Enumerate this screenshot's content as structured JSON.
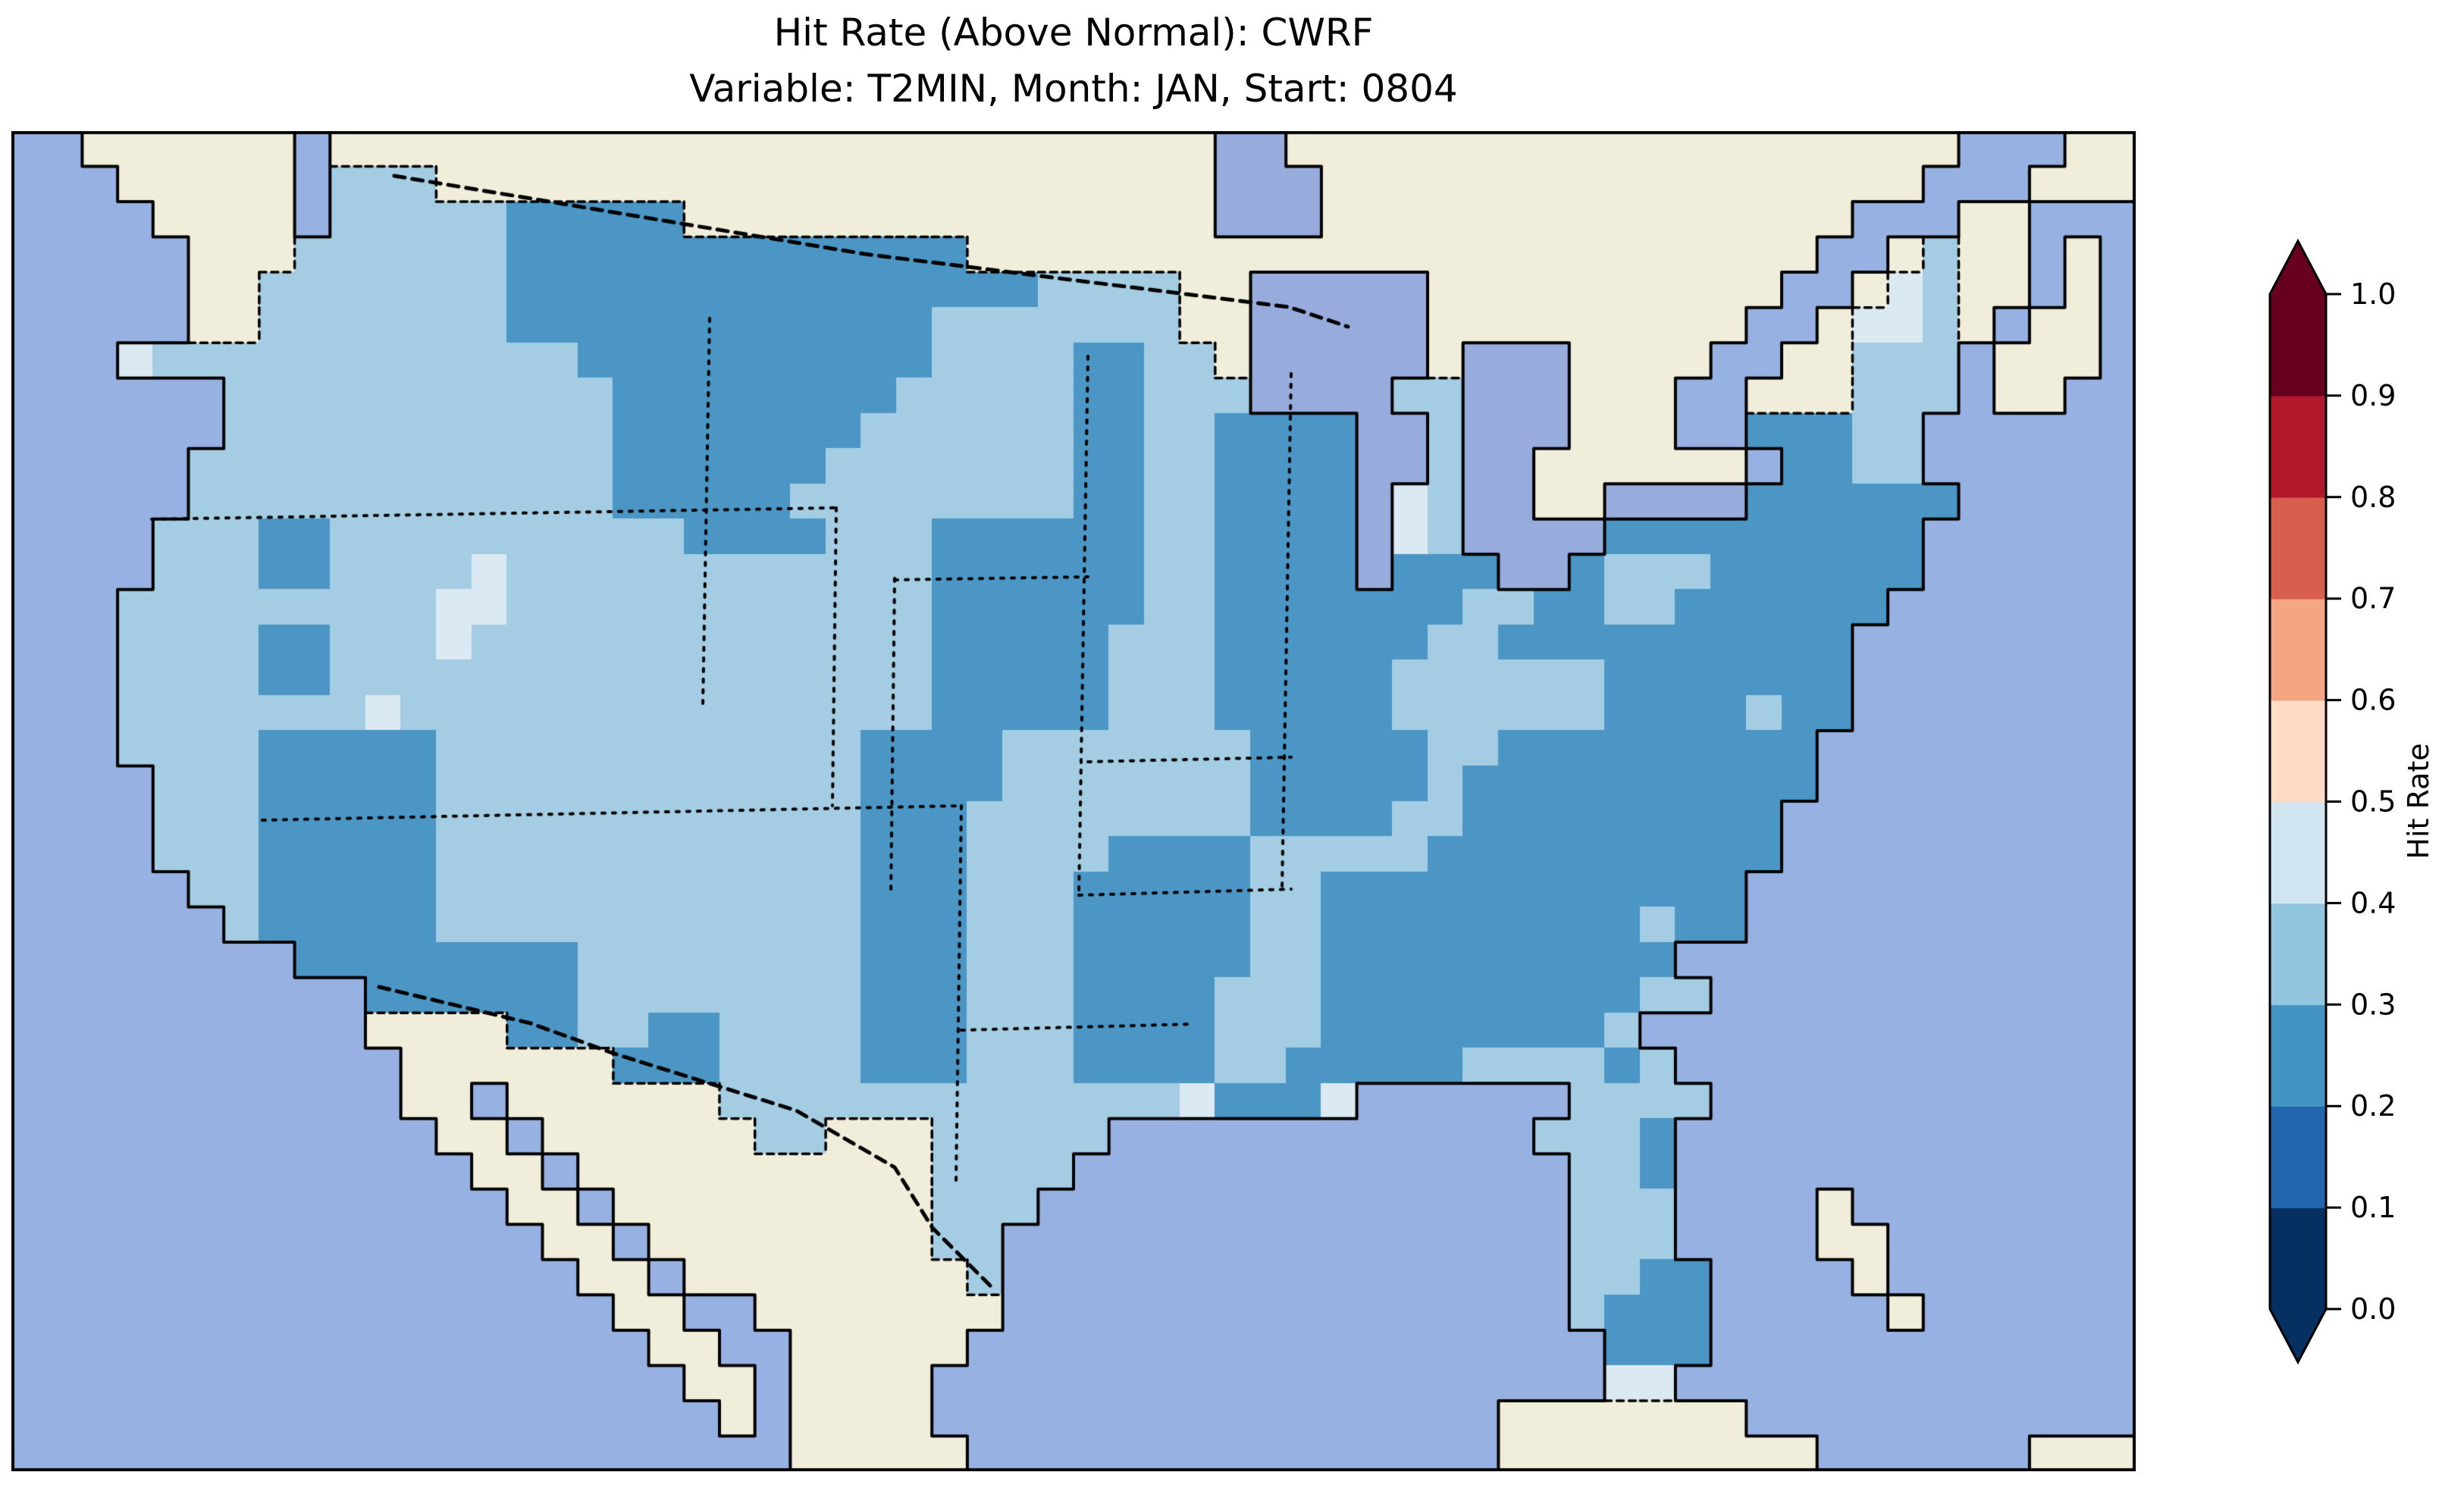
{
  "title": {
    "line1": "Hit Rate (Above Normal): CWRF",
    "line2": "Variable: T2MIN, Month: JAN, Start: 0804"
  },
  "colorbar": {
    "label": "Hit Rate",
    "ticks": [
      "0.0",
      "0.1",
      "0.2",
      "0.3",
      "0.4",
      "0.5",
      "0.6",
      "0.7",
      "0.8",
      "0.9",
      "1.0"
    ],
    "colors": [
      "#053061",
      "#2166ac",
      "#4393c3",
      "#92c5de",
      "#d1e5f0",
      "#fddbc7",
      "#f4a582",
      "#d6604d",
      "#b2182b",
      "#67001f"
    ],
    "colormap": "RdBu_r",
    "extend": "both"
  },
  "map": {
    "palette": {
      "W": "#97b2e2",
      "L": "#f0eeda",
      "K": "#98abdd",
      "2": "#4b96c5",
      "3": "#a4cce3",
      "4": "#dbe9f2"
    },
    "coast_color": "#000000",
    "border_dash_color": "#000000",
    "state_lines": [
      [
        [
          185,
          512
        ],
        [
          1088,
          497
        ]
      ],
      [
        [
          331,
          909
        ],
        [
          1253,
          890
        ]
      ],
      [
        [
          1088,
          497
        ],
        [
          1083,
          890
        ]
      ],
      [
        [
          921,
          247
        ],
        [
          912,
          760
        ]
      ],
      [
        [
          1165,
          590
        ],
        [
          1160,
          1008
        ]
      ],
      [
        [
          1420,
          297
        ],
        [
          1408,
          1008
        ]
      ],
      [
        [
          1165,
          592
        ],
        [
          1420,
          588
        ]
      ],
      [
        [
          1408,
          1008
        ],
        [
          1688,
          1000
        ]
      ],
      [
        [
          1420,
          832
        ],
        [
          1688,
          826
        ]
      ],
      [
        [
          1253,
          890
        ],
        [
          1246,
          1385
        ]
      ],
      [
        [
          1253,
          1186
        ],
        [
          1560,
          1178
        ]
      ],
      [
        [
          1688,
          320
        ],
        [
          1676,
          1000
        ]
      ]
    ],
    "country_borders": [
      [
        [
          505,
          59
        ],
        [
          1125,
          162
        ],
        [
          1685,
          232
        ],
        [
          1763,
          258
        ]
      ],
      [
        [
          485,
          1129
        ],
        [
          685,
          1177
        ],
        [
          795,
          1217
        ],
        [
          1035,
          1292
        ],
        [
          1165,
          1367
        ],
        [
          1215,
          1447
        ],
        [
          1295,
          1527
        ]
      ]
    ]
  },
  "chart_data": {
    "type": "heatmap",
    "title": "Hit Rate (Above Normal): CWRF",
    "subtitle": "Variable: T2MIN, Month: JAN, Start: 0804",
    "model": "CWRF",
    "variable": "T2MIN",
    "month": "JAN",
    "start": "0804",
    "region": "Contiguous United States",
    "colorbar_label": "Hit Rate",
    "value_bins": [
      0.0,
      0.1,
      0.2,
      0.3,
      0.4,
      0.5,
      0.6,
      0.7,
      0.8,
      0.9,
      1.0
    ],
    "bin_colors": [
      "#053061",
      "#2166ac",
      "#4393c3",
      "#92c5de",
      "#d1e5f0",
      "#fddbc7",
      "#f4a582",
      "#d6604d",
      "#b2182b",
      "#67001f"
    ],
    "observed_value_range": [
      0.2,
      0.5
    ],
    "grid_legend": {
      "W": "ocean",
      "L": "non-US land (no data)",
      "K": "lake",
      "2": "hit rate 0.2-0.3",
      "3": "hit rate 0.3-0.4",
      "4": "hit rate 0.4-0.5"
    },
    "grid_cols": 60,
    "grid_rows": 38,
    "grid": [
      "WWLLLLLLWLLLLLLLLLLLLLLLLLLLLLLLLLKKLLLLLLLLLLLLLLLLLLLWWWLL",
      "WWWLLLLLW333LLLLLLLLLLLLLLLLLLLLLLKKKLLLLLLLLLLLLLLLLLWWWLLL",
      "WWWWLLLLW3333322222LLLLLLLLLLLLLLLKKKLLLLLLLLLLLLLLLWWWLLWWW",
      "WWWWWLLL3333332222222222222LLLLLLLLLLLLLLLLLLLLLLLLWWL3LLWLW",
      "WWWWWLL33333332222222222222223333LLKKKKKLLLLLLLLLLWWL43LLWLW",
      "WWWWWLL33333332222222222223333333LLKKKKKLLLLLLLLLWWL443LWLLW",
      "WWW4333333333333222222222233332233LKKKKKLKKKLLLLWWLL333WLLLW",
      "WWWWWW33333333333222222223333322333KKKK33KKKLLLWWLLL333WLLWW",
      "WWWWWW33333333333222222233333322332222KK3KKKLLLWW22233WWWWWW",
      "WWWWW333333333333222222333333322332222KK3KKLLLLLLW2233WWWWWW",
      "WWWWW333333333333222223333333322332222K43KKLLKKKK222222WWWWW",
      "WWWW3332233333333332222333222222332222K43KKKK222222222WWWWWW",
      "WWWW3332233334333333333333222222332222K222KK2333222222WWWWWW",
      "WWW33333333344333333333333222222332222222332233222222WWWWWWW",
      "WWW3333223334333333333333322222333222222332222222222WWWWWWWW",
      "WWW3333223333333333333333322222333222223333332222222WWWWWWWW",
      "WWW3333333433333333333333322222333222223333332222 22WWWWWWWWW",
      "WWW333322222333333333333222233333332222233222222222WWWWWWWWW",
      "WWWW33322222333333333333222233333332222232222222222WWWWWWWWW",
      "WWWW3332222233333333333322233333333222233222222222WWWWWWWWWW",
      "WWWW3332222233333333333322233332222333332222222222WWWWWWWWWW",
      "WWWWW33222223333333333332223332222233222222222222WWWWWWWWWWW",
      "WWWWWW3222223333333333332223332222233222222222 22WWWWWWWWWWWW",
      "WWWWWWWW222222223333333322233322222332222222222WWWWWWWWWWWWW",
      "WWWWWWWWWW22222233333333222333222233322222222233WWWWWWWWWWWWW",
      "WWWWWWWWWWLLLL22332233332223332222333222222223WWWWWWWWWWWWWW",
      "WWWWWWWWWWWLLLLLL222333322233322223322222333323WWWWWWWWWWWWW",
      "WWWWWWWWWWWLLWLLLLLL333333333333342224WWWWWW3333WWWWWWWWWWWWW",
      "WWWWWWWWWWWWLLWLLLLLL33LLL33333WWWWWWWWWWWW3332WWWWWWWWWWWWW",
      "WWWWWWWWWWWWWLLWLLLLLLLLLL3333WWWWWWWWWWWWWW332WWWWWWWWWWWWW",
      "WWWWWWWWWWWWWWLLWLLLLLLLLL333WWWWWWWWWWWWWWW333WWWWLWWWWWWWW",
      "WWWWWWWWWWWWWWWLLWLLLLLLLL33WWWWWWWWWWWWWWWW333WWWWLLWWWWWWW",
      "WWWWWWWWWWWWWWWWLLWLLLLLLLL3WWWWWWWWWWWWWWWW3322WWWWLWWWWWWW",
      "WWWWWWWWWWWWWWWWWLLWWLLLLLLLWWWWWWWWWWWWWWWW3222WWWWWLWWWWWW",
      "WWWWWWWWWWWWWWWWWWLLWWLLLLLWWWWWWWWWWWWWWWWWW222WWWWWWWWWWWW",
      "WWWWWWWWWWWWWWWWWWWLLWLLLLWWWWWWWWWWWWWWWWWWW44WWWWWWWWWWWWW",
      "WWWWWWWWWWWWWWWWWWWWLWLLLLWWWWWWWWWWWWWWWWLLLLLLLWWWWWWWWWW",
      "WWWWWWWWWWWWWWWWWWWWWWLLLLLWWWWWWWWWWWWWWWLLLLLLLLLWWWWWWLLL"
    ]
  }
}
